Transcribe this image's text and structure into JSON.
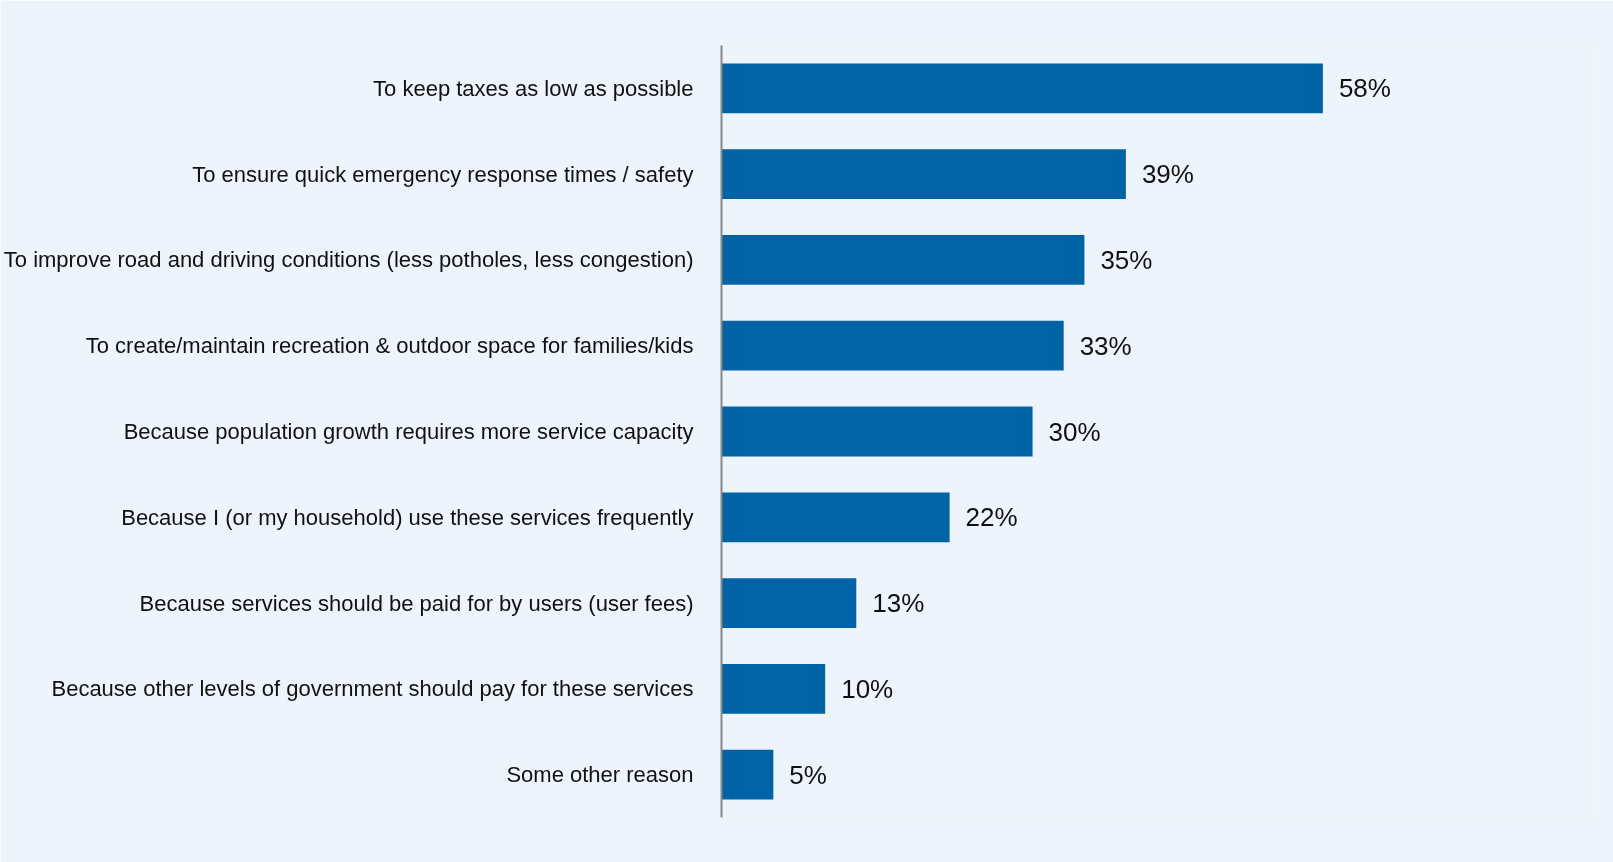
{
  "chart_data": {
    "type": "bar",
    "orientation": "horizontal",
    "categories": [
      "To keep taxes as low as possible",
      "To ensure quick emergency response times / safety",
      "To improve road and driving conditions (less potholes, less congestion)",
      "To create/maintain recreation & outdoor space for families/kids",
      "Because population growth requires more service capacity",
      "Because I (or my household) use these services frequently",
      "Because services should be paid for by users (user fees)",
      "Because other levels of government should pay for these services",
      "Some other reason"
    ],
    "values": [
      58,
      39,
      35,
      33,
      30,
      22,
      13,
      10,
      5
    ],
    "value_labels": [
      "58%",
      "39%",
      "35%",
      "33%",
      "30%",
      "22%",
      "13%",
      "10%",
      "5%"
    ],
    "color": "#0063a6",
    "grid": false
  }
}
